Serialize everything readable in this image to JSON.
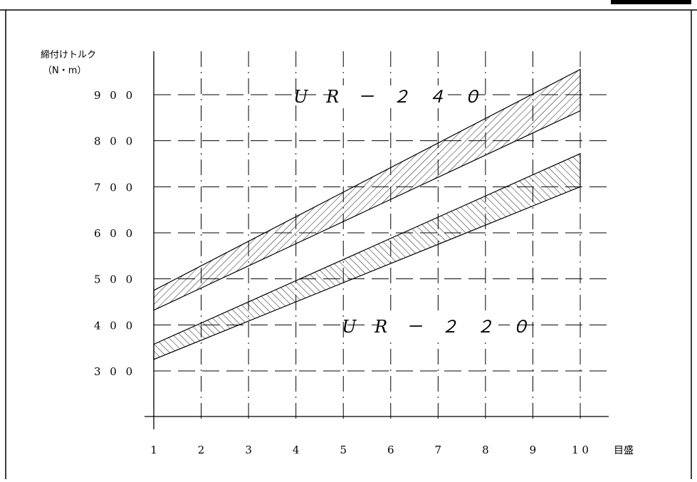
{
  "chart_data": {
    "type": "area",
    "ylabel_line1": "締付けトルク",
    "ylabel_line2": "（N・m）",
    "xlabel": "目盛",
    "x": [
      1,
      2,
      3,
      4,
      5,
      6,
      7,
      8,
      9,
      10
    ],
    "x_tick_labels": [
      "1",
      "2",
      "3",
      "4",
      "5",
      "6",
      "7",
      "8",
      "9",
      "1 0"
    ],
    "y_ticks": [
      300,
      400,
      500,
      600,
      700,
      800,
      900
    ],
    "y_tick_labels": [
      "3 0 0",
      "4 0 0",
      "5 0 0",
      "6 0 0",
      "7 0 0",
      "8 0 0",
      "9 0 0"
    ],
    "xlim": [
      1,
      10
    ],
    "ylim": [
      200,
      960
    ],
    "grid": true,
    "series": [
      {
        "name": "UR－２４０",
        "upper": [
          475,
          955
        ],
        "lower": [
          432,
          865
        ],
        "x_range": [
          1,
          10
        ],
        "hatch": "forward"
      },
      {
        "name": "UR－２２０",
        "upper": [
          358,
          772
        ],
        "lower": [
          325,
          700
        ],
        "x_range": [
          1,
          10
        ],
        "hatch": "backward"
      }
    ],
    "band_labels": [
      {
        "text": "U R － ２ ４ ０",
        "series": 0
      },
      {
        "text": "U R － ２ ２ ０",
        "series": 1
      }
    ]
  }
}
